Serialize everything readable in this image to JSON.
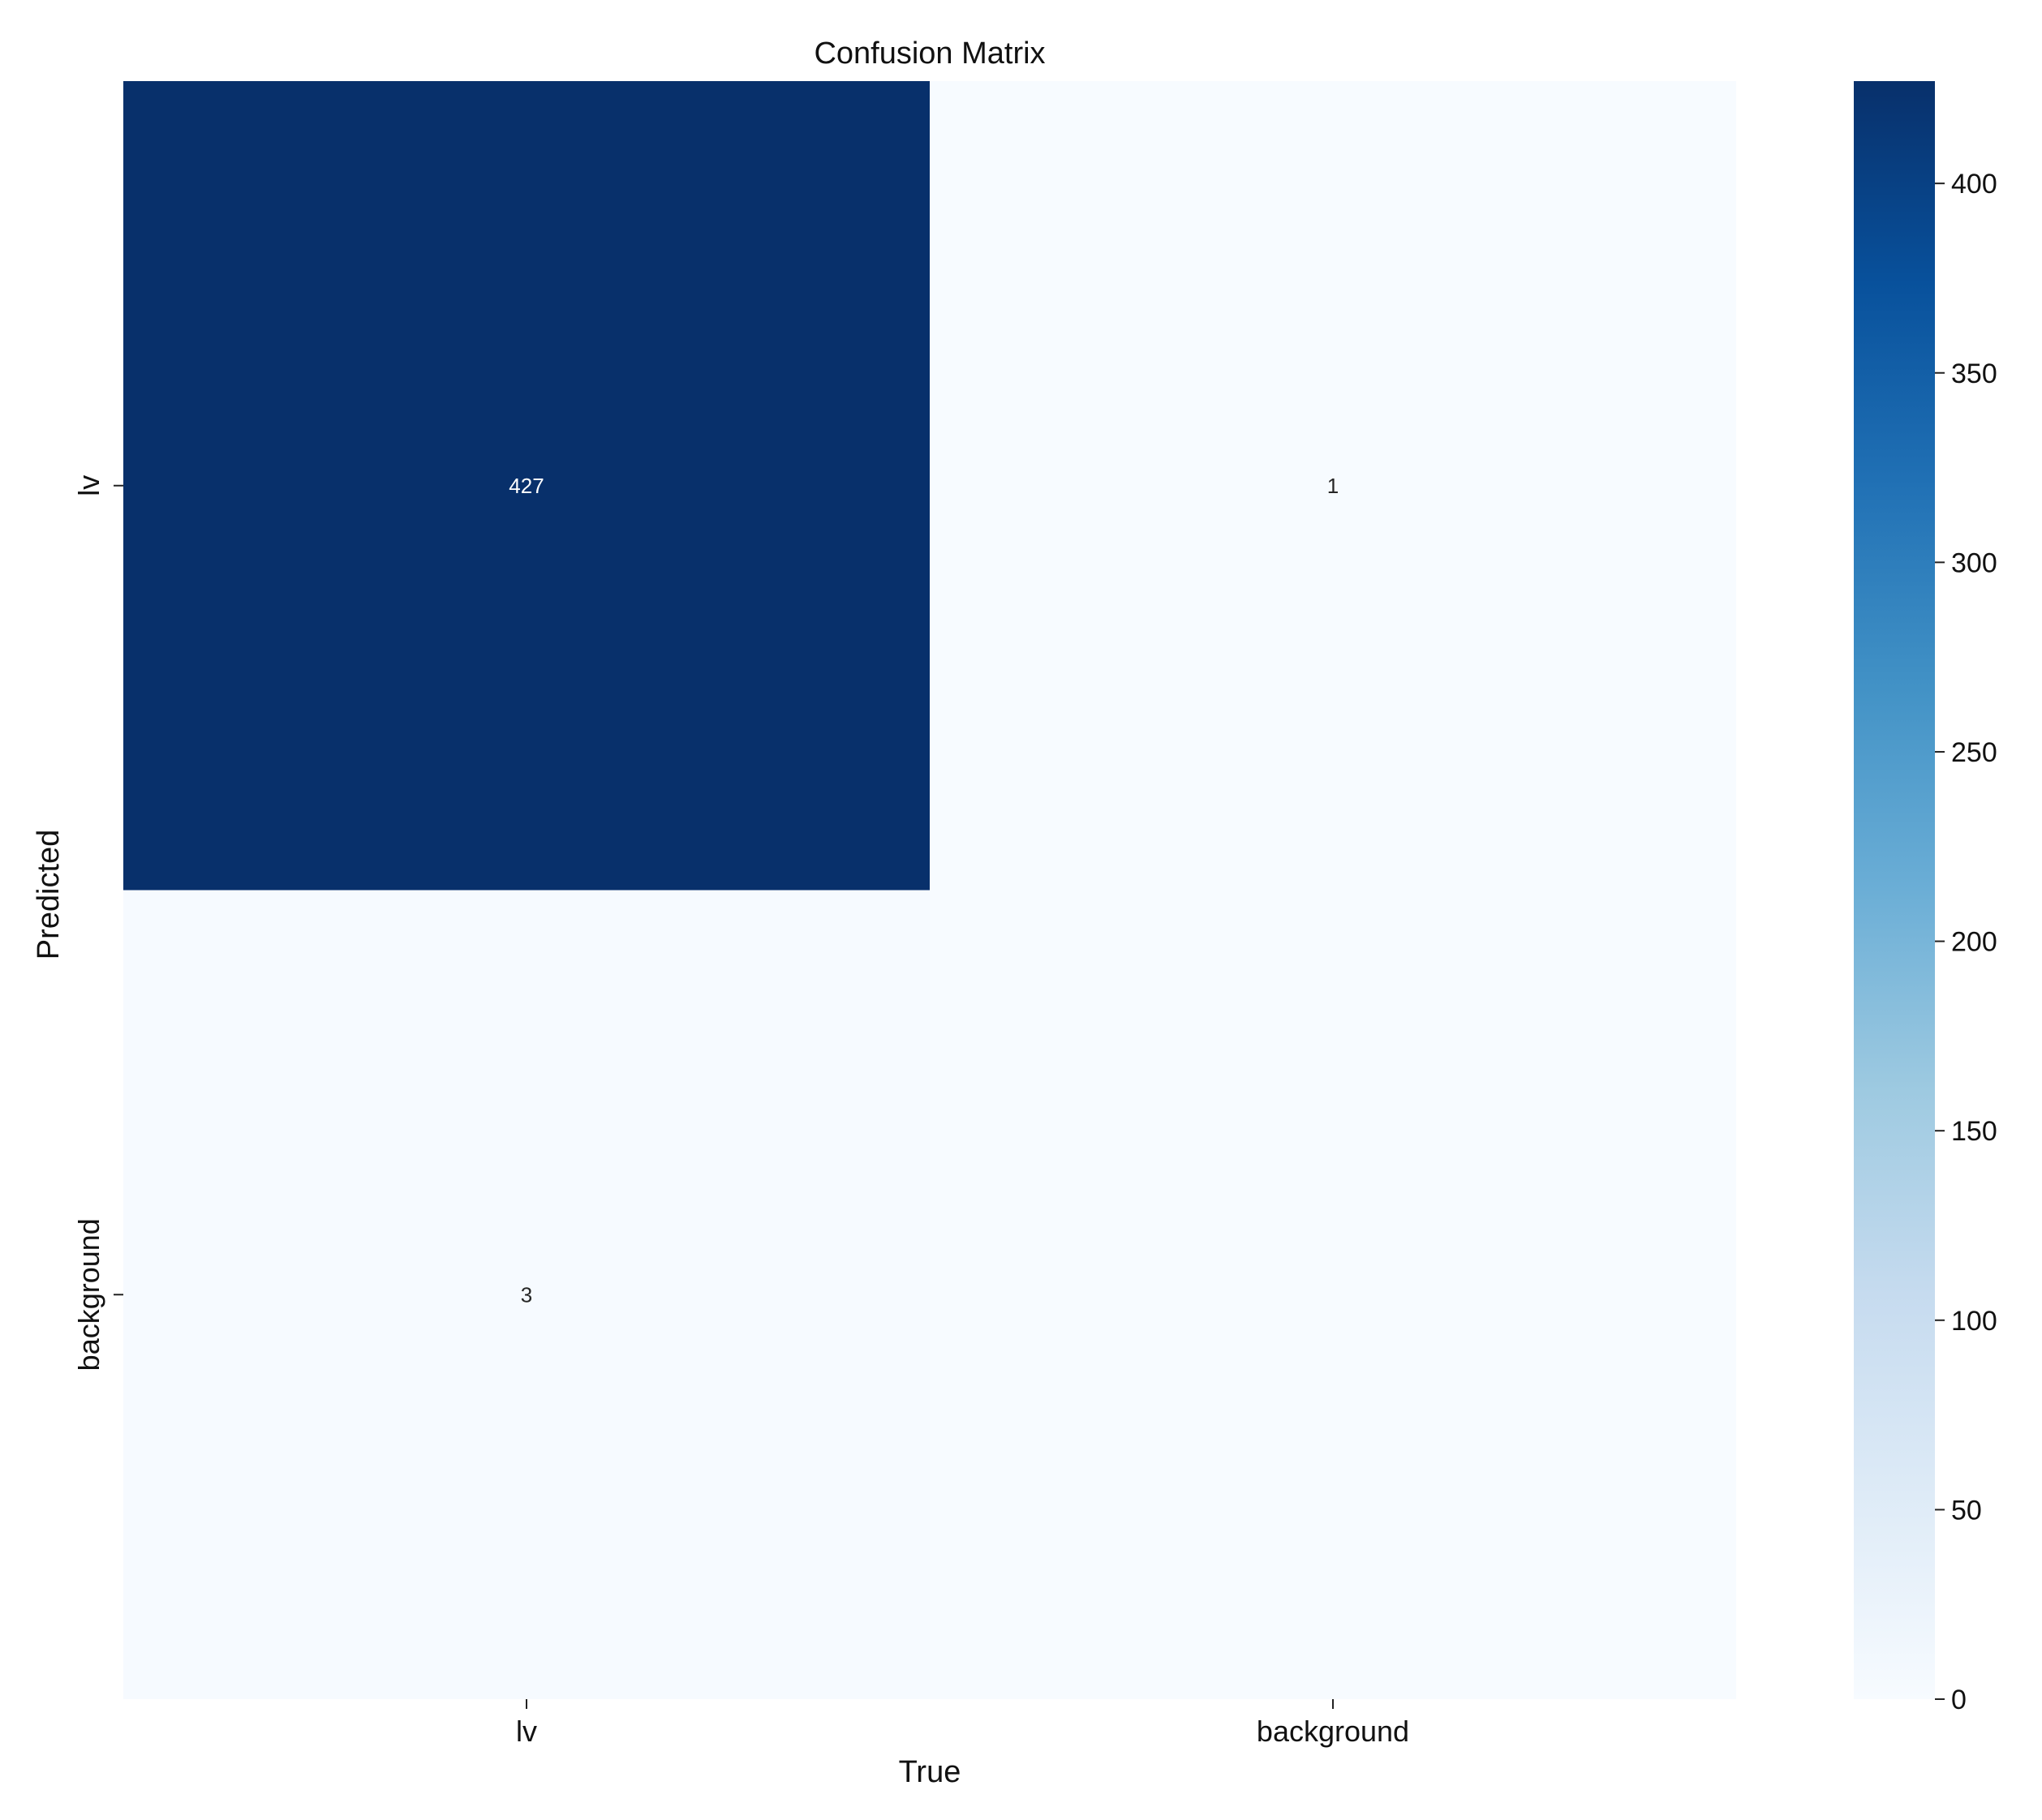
{
  "chart_data": {
    "type": "heatmap",
    "title": "Confusion Matrix",
    "xlabel": "True",
    "ylabel": "Predicted",
    "x_categories": [
      "lv",
      "background"
    ],
    "y_categories": [
      "lv",
      "background"
    ],
    "values": [
      [
        427,
        1
      ],
      [
        3,
        0
      ]
    ],
    "annotations": [
      [
        "427",
        "1"
      ],
      [
        "3",
        ""
      ]
    ],
    "colormap": "Blues",
    "vmin": 0,
    "vmax": 427,
    "colorbar_ticks": [
      0,
      50,
      100,
      150,
      200,
      250,
      300,
      350,
      400
    ],
    "colorbar_tick_labels": [
      "0",
      "50",
      "100",
      "150",
      "200",
      "250",
      "300",
      "350",
      "400"
    ],
    "colors": {
      "high": "#08306b",
      "low": "#f7fbff"
    }
  }
}
